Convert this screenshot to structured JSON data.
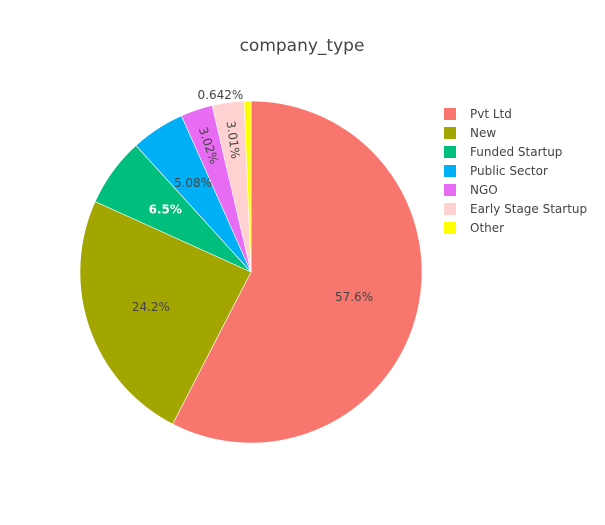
{
  "chart_data": {
    "type": "pie",
    "title": "company_type",
    "labels": [
      "Pvt Ltd",
      "New",
      "Funded Startup",
      "Public Sector",
      "NGO",
      "Early Stage Startup",
      "Other"
    ],
    "values": [
      57.6,
      24.2,
      6.5,
      5.08,
      3.02,
      3.01,
      0.642
    ],
    "value_labels": [
      "57.6%",
      "24.2%",
      "6.5%",
      "5.08%",
      "3.02%",
      "3.01%",
      "0.642%"
    ],
    "colors": [
      "#F8766D",
      "#A3A500",
      "#00BF7D",
      "#00B0F6",
      "#E76BF3",
      "#FFD1D1",
      "#FFFF00"
    ],
    "legend_position": "right",
    "direction": "clockwise",
    "start": "top"
  }
}
